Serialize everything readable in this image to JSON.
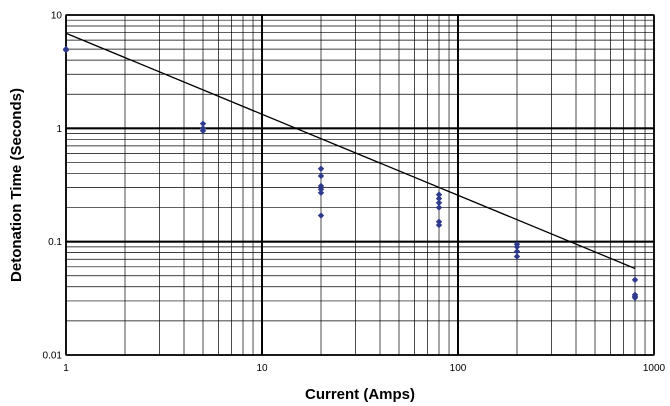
{
  "chart_data": {
    "type": "scatter",
    "title": "",
    "xlabel": "Current (Amps)",
    "ylabel": "Detonation Time (Seconds)",
    "x_scale": "log",
    "y_scale": "log",
    "xlim": [
      1,
      1000
    ],
    "ylim": [
      0.01,
      10
    ],
    "grid": true,
    "legend": "none",
    "x_tick_labels": [
      "1",
      "10",
      "100",
      "1000"
    ],
    "y_tick_labels": [
      "0.01",
      "0.1",
      "1",
      "10"
    ],
    "point_color": "#2e3a8c",
    "series": [
      {
        "type": "scatter",
        "points": [
          [
            1,
            5.0
          ],
          [
            1,
            4.9
          ],
          [
            5,
            1.1
          ],
          [
            5,
            1.0
          ],
          [
            5,
            0.95
          ],
          [
            20,
            0.44
          ],
          [
            20,
            0.38
          ],
          [
            20,
            0.31
          ],
          [
            20,
            0.29
          ],
          [
            20,
            0.27
          ],
          [
            20,
            0.17
          ],
          [
            80,
            0.26
          ],
          [
            80,
            0.24
          ],
          [
            80,
            0.22
          ],
          [
            80,
            0.2
          ],
          [
            80,
            0.15
          ],
          [
            80,
            0.14
          ],
          [
            200,
            0.095
          ],
          [
            200,
            0.09
          ],
          [
            200,
            0.082
          ],
          [
            200,
            0.074
          ],
          [
            800,
            0.046
          ],
          [
            800,
            0.034
          ],
          [
            800,
            0.033
          ],
          [
            800,
            0.032
          ]
        ]
      },
      {
        "type": "line",
        "points": [
          [
            1,
            6.9
          ],
          [
            800,
            0.058
          ]
        ]
      }
    ]
  }
}
